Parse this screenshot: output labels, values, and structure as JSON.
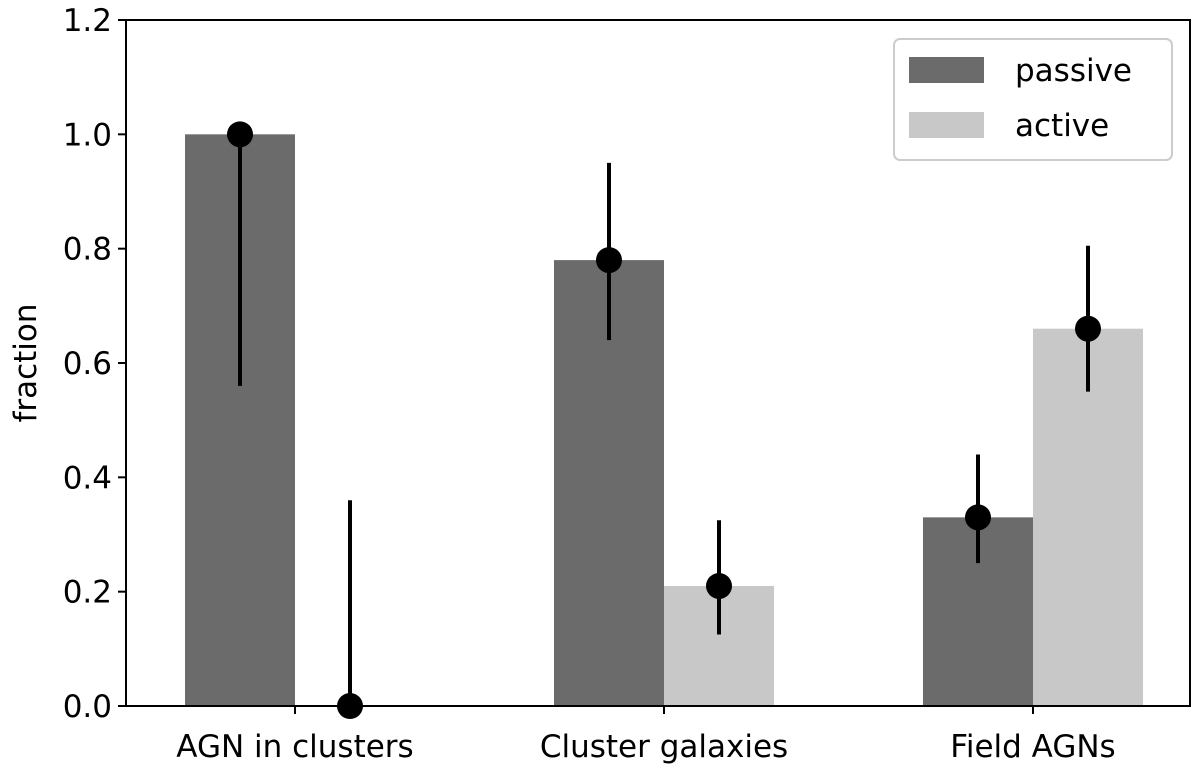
{
  "chart_data": {
    "type": "bar",
    "categories": [
      "AGN in clusters",
      "Cluster galaxies",
      "Field AGNs"
    ],
    "ylabel": "fraction",
    "xlabel": "",
    "ylim": [
      0,
      1.2
    ],
    "yticks": [
      "0.0",
      "0.2",
      "0.4",
      "0.6",
      "0.8",
      "1.0",
      "1.2"
    ],
    "grid": false,
    "legend_position": "top-right",
    "series": [
      {
        "name": "passive",
        "color": "#6b6b6b",
        "values": [
          1.0,
          0.78,
          0.33
        ],
        "error_low": [
          0.56,
          0.64,
          0.25
        ],
        "error_high": [
          1.0,
          0.95,
          0.44
        ]
      },
      {
        "name": "active",
        "color": "#c8c8c8",
        "values": [
          0.0,
          0.21,
          0.66
        ],
        "error_low": [
          0.0,
          0.125,
          0.55
        ],
        "error_high": [
          0.36,
          0.325,
          0.805
        ]
      }
    ]
  }
}
